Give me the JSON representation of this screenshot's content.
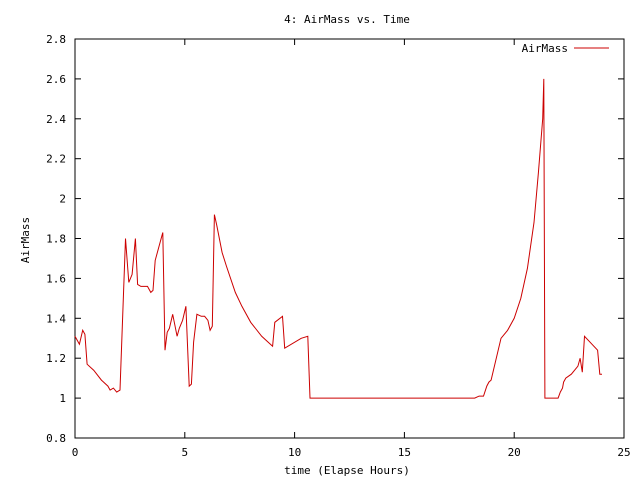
{
  "chart_data": {
    "type": "line",
    "title": "4: AirMass vs. Time",
    "xlabel": "time (Elapse Hours)",
    "ylabel": "AirMass",
    "xlim": [
      0,
      25
    ],
    "ylim": [
      0.8,
      2.8
    ],
    "xticks": [
      0,
      5,
      10,
      15,
      20,
      25
    ],
    "xtick_labels": [
      "0",
      "5",
      "10",
      "15",
      "20",
      "25"
    ],
    "yticks": [
      0.8,
      1.0,
      1.2,
      1.4,
      1.6,
      1.8,
      2.0,
      2.2,
      2.4,
      2.6,
      2.8
    ],
    "ytick_labels": [
      "0.8",
      "1",
      "1.2",
      "1.4",
      "1.6",
      "1.8",
      "2",
      "2.2",
      "2.4",
      "2.6",
      "2.8"
    ],
    "grid": false,
    "legend_position": "top-right",
    "series": [
      {
        "name": "AirMass",
        "color": "#cc0000",
        "x": [
          0.0,
          0.2,
          0.35,
          0.45,
          0.55,
          0.75,
          0.85,
          1.2,
          1.5,
          1.6,
          1.75,
          1.9,
          2.05,
          2.3,
          2.45,
          2.6,
          2.75,
          2.85,
          3.0,
          3.3,
          3.45,
          3.55,
          3.65,
          3.95,
          4.0,
          4.1,
          4.2,
          4.3,
          4.45,
          4.65,
          4.75,
          4.9,
          5.05,
          5.2,
          5.3,
          5.4,
          5.55,
          5.75,
          5.9,
          6.05,
          6.15,
          6.25,
          6.35,
          6.45,
          6.7,
          6.9,
          7.3,
          7.6,
          8.0,
          8.5,
          8.9,
          9.0,
          9.1,
          9.45,
          9.55,
          10.3,
          10.6,
          10.7,
          11.5,
          14.0,
          18.2,
          18.4,
          18.6,
          18.75,
          18.85,
          18.95,
          19.4,
          19.7,
          20.0,
          20.3,
          20.6,
          20.9,
          21.1,
          21.3,
          21.35,
          21.4,
          21.9,
          22.0,
          22.1,
          22.2,
          22.25,
          22.35,
          22.6,
          22.9,
          23.0,
          23.1,
          23.2,
          23.8,
          23.9,
          24.0
        ],
        "y": [
          1.31,
          1.27,
          1.34,
          1.32,
          1.17,
          1.15,
          1.14,
          1.09,
          1.06,
          1.04,
          1.05,
          1.03,
          1.04,
          1.8,
          1.58,
          1.62,
          1.8,
          1.57,
          1.56,
          1.56,
          1.53,
          1.54,
          1.69,
          1.81,
          1.83,
          1.24,
          1.33,
          1.35,
          1.42,
          1.31,
          1.35,
          1.39,
          1.46,
          1.06,
          1.07,
          1.28,
          1.42,
          1.41,
          1.41,
          1.39,
          1.34,
          1.36,
          1.92,
          1.87,
          1.73,
          1.66,
          1.53,
          1.46,
          1.38,
          1.31,
          1.27,
          1.26,
          1.38,
          1.41,
          1.25,
          1.3,
          1.31,
          1.0,
          1.0,
          1.0,
          1.0,
          1.01,
          1.01,
          1.06,
          1.08,
          1.09,
          1.3,
          1.34,
          1.4,
          1.5,
          1.65,
          1.88,
          2.13,
          2.4,
          2.6,
          1.0,
          1.0,
          1.0,
          1.03,
          1.05,
          1.08,
          1.1,
          1.12,
          1.16,
          1.2,
          1.13,
          1.31,
          1.24,
          1.12,
          1.12
        ]
      }
    ]
  }
}
